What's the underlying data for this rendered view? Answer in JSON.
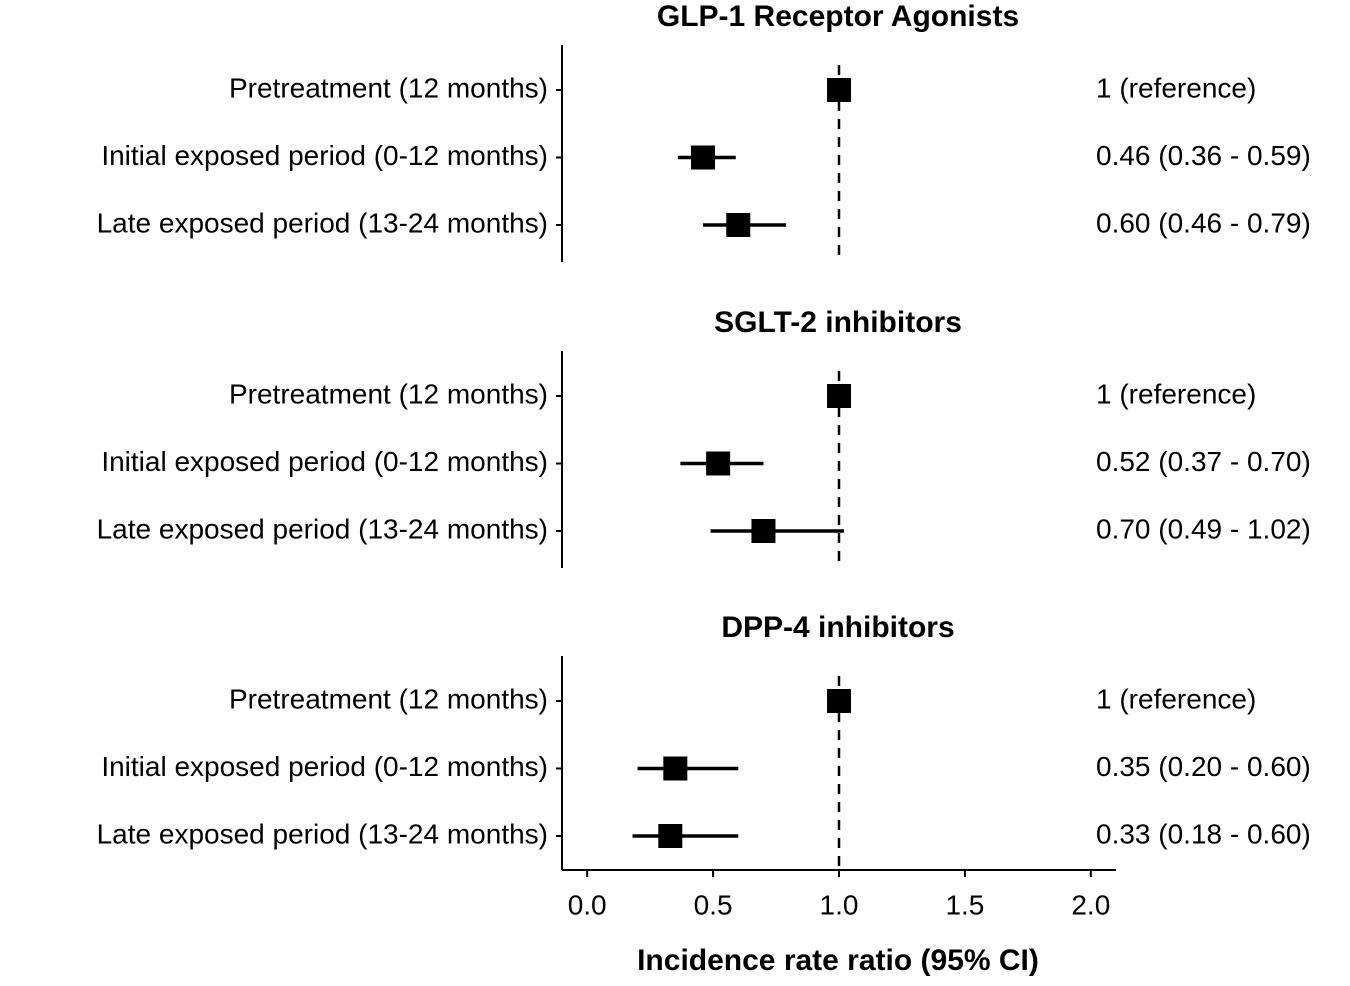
{
  "chart_data": {
    "type": "forest",
    "xlabel": "Incidence rate ratio (95% CI)",
    "xlim": [
      -0.1,
      2.1
    ],
    "xticks": [
      {
        "value": 0,
        "label": "0.0"
      },
      0.5,
      {
        "value": 1,
        "label": "1.0"
      },
      1.5,
      {
        "value": 2,
        "label": "2.0"
      }
    ],
    "reference_line": 1,
    "color": "#000000",
    "panels": [
      {
        "title": "GLP-1 Receptor Agonists",
        "categories": [
          "Pretreatment (12 months)",
          "Initial exposed period (0-12 months)",
          "Late exposed period (13-24 months)"
        ],
        "values": [
          1,
          0.46,
          0.6
        ],
        "lower": [
          null,
          0.36,
          0.46
        ],
        "upper": [
          null,
          0.59,
          0.79
        ],
        "value_labels": [
          "1 (reference)",
          "0.46 (0.36 - 0.59)",
          "0.60 (0.46 - 0.79)"
        ]
      },
      {
        "title": "SGLT-2 inhibitors",
        "categories": [
          "Pretreatment (12 months)",
          "Initial exposed period (0-12 months)",
          "Late exposed period (13-24 months)"
        ],
        "values": [
          1,
          0.52,
          0.7
        ],
        "lower": [
          null,
          0.37,
          0.49
        ],
        "upper": [
          null,
          0.7,
          1.02
        ],
        "value_labels": [
          "1 (reference)",
          "0.52 (0.37 - 0.70)",
          "0.70 (0.49 - 1.02)"
        ]
      },
      {
        "title": "DPP-4 inhibitors",
        "categories": [
          "Pretreatment (12 months)",
          "Initial exposed period (0-12 months)",
          "Late exposed period (13-24 months)"
        ],
        "values": [
          1,
          0.35,
          0.33
        ],
        "lower": [
          null,
          0.2,
          0.18
        ],
        "upper": [
          null,
          0.6,
          0.6
        ],
        "value_labels": [
          "1 (reference)",
          "0.35 (0.20 - 0.60)",
          "0.33 (0.18 - 0.60)"
        ]
      }
    ]
  }
}
